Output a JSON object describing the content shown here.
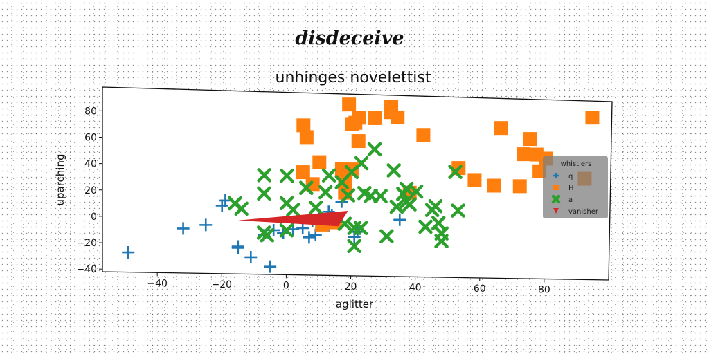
{
  "suptitle": "disdeceive",
  "chart_data": {
    "type": "scatter",
    "title": "unhinges novelettist",
    "xlabel": "aglitter",
    "ylabel": "uparching",
    "xlim": [
      -57,
      100
    ],
    "ylim": [
      -42,
      98
    ],
    "xticks": [
      -40,
      -20,
      0,
      20,
      40,
      60,
      80
    ],
    "yticks": [
      -40,
      -20,
      0,
      20,
      40,
      60,
      80
    ],
    "legend": {
      "title": "whistlers",
      "placement": "right"
    },
    "series": [
      {
        "name": "q",
        "marker": "plus",
        "color": "#1f77b4",
        "points": [
          [
            -49,
            -27
          ],
          [
            -32,
            -8
          ],
          [
            -25,
            -5
          ],
          [
            -20,
            10
          ],
          [
            -19,
            14
          ],
          [
            -15,
            -22
          ],
          [
            -15,
            -21
          ],
          [
            -11,
            -29
          ],
          [
            -7,
            -12
          ],
          [
            -5,
            -36
          ],
          [
            -4,
            -8
          ],
          [
            -1,
            -10
          ],
          [
            2,
            -7
          ],
          [
            5,
            -6
          ],
          [
            7,
            -13
          ],
          [
            8,
            0
          ],
          [
            9,
            -11
          ],
          [
            10,
            2
          ],
          [
            13,
            7
          ],
          [
            14,
            4
          ],
          [
            17,
            15
          ],
          [
            21,
            -12
          ],
          [
            22,
            -8
          ],
          [
            35,
            2
          ],
          [
            13,
            -4
          ]
        ]
      },
      {
        "name": "H",
        "marker": "square",
        "color": "#ff7f0e",
        "points": [
          [
            5,
            37
          ],
          [
            5,
            73
          ],
          [
            6,
            64
          ],
          [
            8,
            28
          ],
          [
            10,
            45
          ],
          [
            11,
            -3
          ],
          [
            15,
            -1
          ],
          [
            17,
            40
          ],
          [
            18,
            30
          ],
          [
            18,
            22
          ],
          [
            19,
            90
          ],
          [
            20,
            75
          ],
          [
            20,
            40
          ],
          [
            21,
            76
          ],
          [
            22,
            62
          ],
          [
            22,
            80
          ],
          [
            27,
            80
          ],
          [
            32,
            85
          ],
          [
            32,
            89
          ],
          [
            34,
            81
          ],
          [
            38,
            23
          ],
          [
            42,
            68
          ],
          [
            53,
            43
          ],
          [
            58,
            34
          ],
          [
            64,
            30
          ],
          [
            66,
            75
          ],
          [
            72,
            30
          ],
          [
            73,
            55
          ],
          [
            75,
            67
          ],
          [
            77,
            55
          ],
          [
            78,
            42
          ],
          [
            80,
            52
          ],
          [
            94,
            85
          ],
          [
            92,
            37
          ]
        ]
      },
      {
        "name": "a",
        "marker": "x",
        "color": "#2ca02c",
        "points": [
          [
            -16,
            12
          ],
          [
            -14,
            8
          ],
          [
            -7,
            34
          ],
          [
            -7,
            20
          ],
          [
            -7,
            -10
          ],
          [
            -6,
            -12
          ],
          [
            0,
            13
          ],
          [
            0,
            34
          ],
          [
            0,
            -8
          ],
          [
            2,
            8
          ],
          [
            6,
            25
          ],
          [
            9,
            10
          ],
          [
            12,
            22
          ],
          [
            13,
            35
          ],
          [
            17,
            30
          ],
          [
            19,
            20
          ],
          [
            20,
            38
          ],
          [
            21,
            -5
          ],
          [
            21,
            -19
          ],
          [
            23,
            45
          ],
          [
            23,
            -5
          ],
          [
            24,
            22
          ],
          [
            26,
            20
          ],
          [
            27,
            56
          ],
          [
            29,
            20
          ],
          [
            31,
            -11
          ],
          [
            33,
            40
          ],
          [
            34,
            12
          ],
          [
            36,
            22
          ],
          [
            37,
            26
          ],
          [
            37,
            16
          ],
          [
            38,
            14
          ],
          [
            40,
            24
          ],
          [
            43,
            -3
          ],
          [
            45,
            10
          ],
          [
            46,
            13
          ],
          [
            47,
            0
          ],
          [
            48,
            -14
          ],
          [
            48,
            -8
          ],
          [
            52,
            40
          ],
          [
            53,
            10
          ],
          [
            18,
            -2
          ]
        ]
      },
      {
        "name": "vanisher",
        "marker": "triangle_down",
        "color": "#d62728",
        "points": [
          [
            -15,
            -1
          ],
          [
            19,
            8
          ],
          [
            16,
            -4
          ]
        ]
      }
    ]
  }
}
